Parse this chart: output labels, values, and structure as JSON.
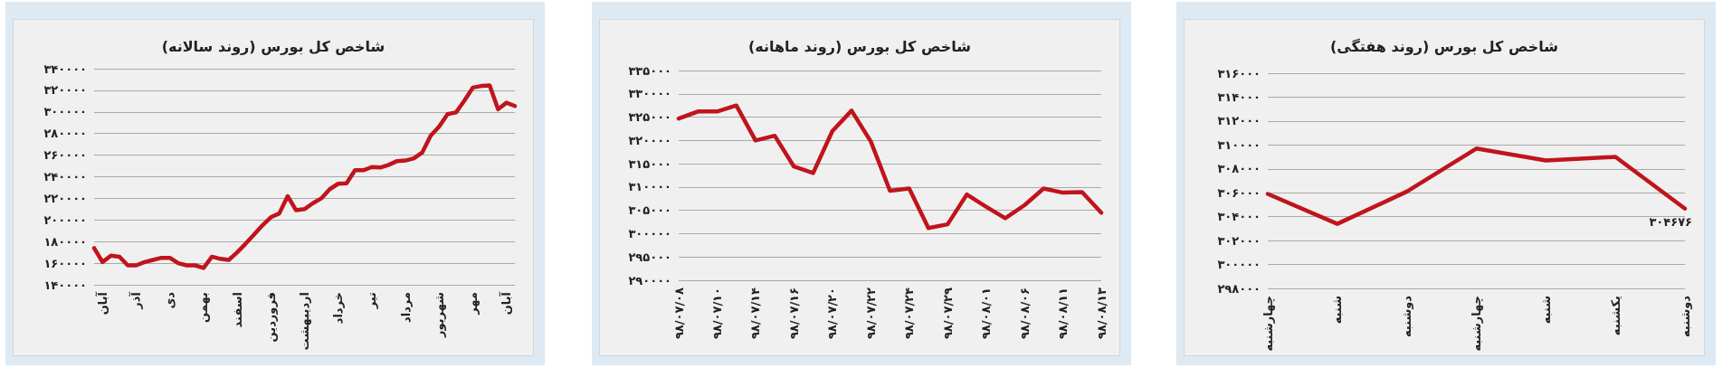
{
  "chart_data": [
    {
      "type": "line",
      "title": "شاخص کل بورس (روند سالانه)",
      "categories": [
        null,
        "آبان",
        null,
        null,
        null,
        "آذر",
        null,
        null,
        null,
        "دی",
        null,
        null,
        null,
        "بهمن",
        null,
        null,
        null,
        "اسفند",
        null,
        null,
        null,
        "فروردین",
        null,
        null,
        null,
        "اردیبهشت",
        null,
        null,
        null,
        "خرداد",
        null,
        null,
        null,
        "تیر",
        null,
        null,
        null,
        "مرداد",
        null,
        null,
        null,
        "شهریور",
        null,
        null,
        null,
        "مهر",
        null,
        null,
        null,
        "آبان",
        null
      ],
      "ylim": [
        140000,
        340000
      ],
      "yticks": [
        {
          "value": 140000,
          "label": "۱۴۰۰۰۰"
        },
        {
          "value": 160000,
          "label": "۱۶۰۰۰۰"
        },
        {
          "value": 180000,
          "label": "۱۸۰۰۰۰"
        },
        {
          "value": 200000,
          "label": "۲۰۰۰۰۰"
        },
        {
          "value": 220000,
          "label": "۲۲۰۰۰۰"
        },
        {
          "value": 240000,
          "label": "۲۴۰۰۰۰"
        },
        {
          "value": 260000,
          "label": "۲۶۰۰۰۰"
        },
        {
          "value": 280000,
          "label": "۲۸۰۰۰۰"
        },
        {
          "value": 300000,
          "label": "۳۰۰۰۰۰"
        },
        {
          "value": 320000,
          "label": "۳۲۰۰۰۰"
        },
        {
          "value": 340000,
          "label": "۳۴۰۰۰۰"
        }
      ],
      "grid": "y",
      "marker": "none",
      "series": [
        {
          "color": "#c0141c",
          "values": [
            174000,
            161000,
            167000,
            166000,
            158000,
            158000,
            161000,
            163000,
            165000,
            165000,
            160000,
            158000,
            158000,
            155500,
            166000,
            164000,
            163000,
            170000,
            178000,
            186500,
            195000,
            202500,
            206000,
            222000,
            209000,
            210000,
            215500,
            220000,
            228500,
            233500,
            234000,
            246000,
            246000,
            249000,
            248500,
            251000,
            254500,
            255000,
            257000,
            262500,
            278000,
            286500,
            298000,
            299500,
            310500,
            322500,
            324000,
            324500,
            302500,
            308500,
            305500
          ]
        }
      ]
    },
    {
      "type": "line",
      "title": "شاخص کل بورس (روند ماهانه)",
      "categories": [
        "۹۸/۰۷/۰۸",
        null,
        "۹۸/۰۷/۱۰",
        null,
        "۹۸/۰۷/۱۴",
        null,
        "۹۸/۰۷/۱۶",
        null,
        "۹۸/۰۷/۲۰",
        null,
        "۹۸/۰۷/۲۲",
        null,
        "۹۸/۰۷/۲۴",
        null,
        "۹۸/۰۷/۲۹",
        null,
        "۹۸/۰۸/۰۱",
        null,
        "۹۸/۰۸/۰۶",
        null,
        "۹۸/۰۸/۱۱",
        null,
        "۹۸/۰۸/۱۳"
      ],
      "ylim": [
        290000,
        335000
      ],
      "yticks": [
        {
          "value": 290000,
          "label": "۲۹۰۰۰۰"
        },
        {
          "value": 295000,
          "label": "۲۹۵۰۰۰"
        },
        {
          "value": 300000,
          "label": "۳۰۰۰۰۰"
        },
        {
          "value": 305000,
          "label": "۳۰۵۰۰۰"
        },
        {
          "value": 310000,
          "label": "۳۱۰۰۰۰"
        },
        {
          "value": 315000,
          "label": "۳۱۵۰۰۰"
        },
        {
          "value": 320000,
          "label": "۳۲۰۰۰۰"
        },
        {
          "value": 325000,
          "label": "۳۲۵۰۰۰"
        },
        {
          "value": 330000,
          "label": "۳۳۰۰۰۰"
        },
        {
          "value": 335000,
          "label": "۳۳۵۰۰۰"
        }
      ],
      "grid": "y",
      "marker": "none",
      "series": [
        {
          "color": "#c0141c",
          "values": [
            324700,
            326200,
            326200,
            327500,
            320000,
            321000,
            314400,
            313000,
            322000,
            326400,
            319800,
            309200,
            309700,
            301200,
            302000,
            308400,
            305800,
            303300,
            306100,
            309700,
            308800,
            308900,
            304500
          ]
        }
      ]
    },
    {
      "type": "line",
      "title": "شاخص کل بورس (روند هفتگی)",
      "categories": [
        "چهارشنبه",
        "شنبه",
        "دوشنبه",
        "چهارشنبه",
        "شنبه",
        "یکشنبه",
        "دوشنبه"
      ],
      "ylim": [
        298000,
        316000
      ],
      "yticks": [
        {
          "value": 298000,
          "label": "۲۹۸۰۰۰"
        },
        {
          "value": 300000,
          "label": "۳۰۰۰۰۰"
        },
        {
          "value": 302000,
          "label": "۳۰۲۰۰۰"
        },
        {
          "value": 304000,
          "label": "۳۰۴۰۰۰"
        },
        {
          "value": 306000,
          "label": "۳۰۶۰۰۰"
        },
        {
          "value": 308000,
          "label": "۳۰۸۰۰۰"
        },
        {
          "value": 310000,
          "label": "۳۱۰۰۰۰"
        },
        {
          "value": 312000,
          "label": "۳۱۲۰۰۰"
        },
        {
          "value": 314000,
          "label": "۳۱۴۰۰۰"
        },
        {
          "value": 316000,
          "label": "۳۱۶۰۰۰"
        }
      ],
      "grid": "y",
      "marker": "none",
      "series": [
        {
          "color": "#c0141c",
          "values": [
            305900,
            303400,
            306100,
            309700,
            308700,
            309000,
            304676
          ],
          "value_labels": [
            null,
            null,
            null,
            null,
            null,
            null,
            "۳۰۴۶۷۶"
          ]
        }
      ]
    }
  ]
}
